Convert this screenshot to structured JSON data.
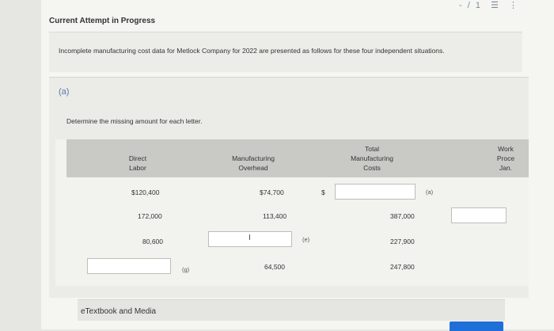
{
  "topbar": {
    "page_indicator": "- / 1",
    "list_icon": "list-icon",
    "more_icon": "more-vertical-icon"
  },
  "attempt_title": "Current Attempt in Progress",
  "intro": "Incomplete manufacturing cost data for Metlock Company for 2022 are presented as follows for these four independent situations.",
  "part": {
    "label": "(a)",
    "instruction": "Determine the missing amount for each letter."
  },
  "table": {
    "headers": {
      "direct_labor": [
        "Direct",
        "Labor"
      ],
      "overhead": [
        "Manufacturing",
        "Overhead"
      ],
      "total": [
        "Total",
        "Manufacturing",
        "Costs"
      ],
      "wip": [
        "Work",
        "Proce",
        "Jan."
      ]
    },
    "rows": [
      {
        "direct_labor": "$120,400",
        "overhead": "$74,700",
        "total_prefix": "$",
        "total_letter": "(a)"
      },
      {
        "direct_labor": "172,000",
        "overhead": "113,400",
        "total": "387,000"
      },
      {
        "direct_labor": "80,600",
        "overhead_letter": "(e)",
        "total": "227,900"
      },
      {
        "direct_labor_letter": "(g)",
        "overhead": "64,500",
        "total": "247,800"
      }
    ]
  },
  "etextbook_label": "eTextbook and Media",
  "colors": {
    "part_label": "#5a78a8",
    "submit_button": "#1e6fd8"
  }
}
